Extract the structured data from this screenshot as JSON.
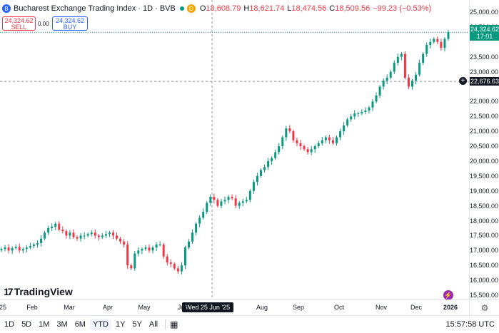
{
  "legend": {
    "symbol_icon": "B",
    "title": "Bucharest Exchange Trading Index · 1D · BVB",
    "d_badge": "D",
    "open_key": "O",
    "open_val": "18,608.79",
    "high_key": "H",
    "high_val": "18,621.74",
    "low_key": "L",
    "low_val": "18,474.56",
    "close_key": "C",
    "close_val": "18,509.56",
    "change": "−99.23 (−0.53%)"
  },
  "trade": {
    "sell_price": "24,324.62",
    "sell_label": "SELL",
    "spread": "0.00",
    "buy_price": "24,324.62",
    "buy_label": "BUY"
  },
  "price_axis": {
    "labels": [
      "25,000.00",
      "24,500.00",
      "23,500.00",
      "23,000.00",
      "22,000.00",
      "21,500.00",
      "21,000.00",
      "20,500.00",
      "20,000.00",
      "19,500.00",
      "19,000.00",
      "18,500.00",
      "18,000.00",
      "17,500.00",
      "17,000.00",
      "16,500.00",
      "16,000.00",
      "15,500.00"
    ],
    "current_price": "24,324.62",
    "countdown": "17:01",
    "crosshair_price": "22,676.63",
    "colors": {
      "up": "#089981",
      "down": "#f23645",
      "current_tag": "#089981",
      "crosshair_tag": "#131722"
    }
  },
  "time_axis": {
    "labels": [
      "25",
      "Feb",
      "Mar",
      "Apr",
      "May",
      "Jun",
      "Aug",
      "Sep",
      "Oct",
      "Nov",
      "Dec",
      "2026"
    ],
    "crosshair_date": "Wed 25 Jun '25"
  },
  "toolbar": {
    "timeframes": [
      "1D",
      "5D",
      "1M",
      "3M",
      "6M",
      "YTD",
      "1Y",
      "5Y",
      "All"
    ],
    "active": "YTD",
    "calendar_icon": "calendar-icon",
    "clock": "15:57:58 UTC"
  },
  "branding": {
    "logo_text": "TradingView",
    "logo_mark": "17"
  },
  "chart_data": {
    "type": "candlestick",
    "series": [
      {
        "x": "Jan",
        "values": [
          17050,
          17100,
          17000,
          17080,
          17120,
          17000,
          17050,
          17100,
          17150,
          17200,
          17250,
          17400,
          17600,
          17750,
          17800,
          17900,
          17700
        ]
      },
      {
        "x": "Feb",
        "values": [
          17650,
          17500,
          17600,
          17450,
          17400,
          17500,
          17500,
          17550,
          17600,
          17500,
          17450,
          17500,
          17550,
          17600,
          17500
        ]
      },
      {
        "x": "Mar-Apr",
        "values": [
          17400,
          17300,
          17200,
          16500,
          16400,
          16900,
          17000,
          17050,
          17100,
          17000,
          17100,
          17200
        ]
      },
      {
        "x": "May",
        "values": [
          17200,
          16800,
          16600,
          16550,
          16400,
          16300,
          16500,
          17100,
          17300,
          17600,
          17900,
          18100
        ]
      },
      {
        "x": "Jun",
        "values": [
          18300,
          18600,
          18800,
          18700,
          18500,
          18650,
          18700,
          18800,
          18750,
          18500,
          18600,
          18650,
          18700
        ]
      },
      {
        "x": "Jul",
        "values": [
          19000,
          19300,
          19500,
          19700,
          19800,
          20000,
          20100,
          20300,
          20500,
          20800,
          21100,
          21000
        ]
      },
      {
        "x": "Aug-Sep",
        "values": [
          20700,
          20600,
          20500,
          20400,
          20300,
          20400,
          20500,
          20600,
          20700,
          20800,
          20700,
          20600
        ]
      },
      {
        "x": "Oct",
        "values": [
          20800,
          21000,
          21200,
          21400,
          21500,
          21600,
          21600,
          21650,
          21700,
          21800,
          22000,
          22200
        ]
      },
      {
        "x": "Nov",
        "values": [
          22500,
          22700,
          22800,
          23000,
          23300,
          23500,
          23600,
          22800,
          22500,
          22700,
          22900,
          23300
        ]
      },
      {
        "x": "Dec-2026",
        "values": [
          23600,
          23900,
          24000,
          24100,
          24000,
          23800,
          24100,
          24324.62
        ]
      }
    ],
    "ylim": [
      15500,
      25000
    ]
  }
}
